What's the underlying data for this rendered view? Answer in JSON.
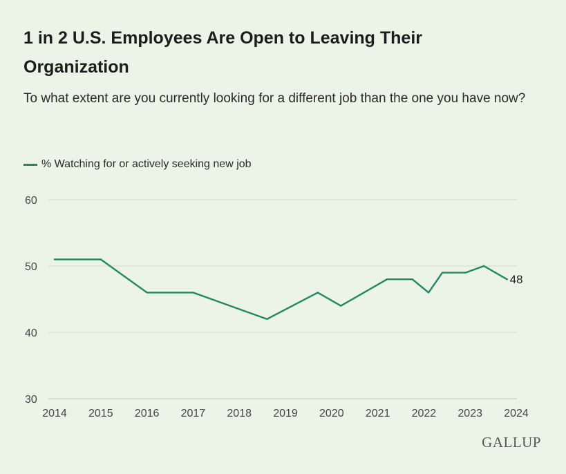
{
  "title": "1 in 2 U.S. Employees Are Open to Leaving Their Organization",
  "subtitle": "To what extent are you currently looking for a different job than the one you have now?",
  "logo": "GALLUP",
  "colors": {
    "series": "#1f8a5b",
    "grid": "#d2d8cd",
    "axis_text": "#444444"
  },
  "chart_data": {
    "type": "line",
    "title": "1 in 2 U.S. Employees Are Open to Leaving Their Organization",
    "subtitle": "To what extent are you currently looking for a different job than the one you have now?",
    "xlabel": "",
    "ylabel": "",
    "ylim": [
      30,
      60
    ],
    "yticks": [
      30,
      40,
      50,
      60
    ],
    "xlim": [
      2014,
      2024
    ],
    "xticks": [
      "2014",
      "2015",
      "2016",
      "2017",
      "2018",
      "2019",
      "2020",
      "2021",
      "2022",
      "2023",
      "2024"
    ],
    "grid": true,
    "legend_position": "top-left",
    "series": [
      {
        "name": "% Watching for or actively seeking new job",
        "x": [
          2014.0,
          2015.0,
          2016.0,
          2017.0,
          2018.6,
          2019.7,
          2020.2,
          2021.2,
          2021.75,
          2022.1,
          2022.4,
          2022.9,
          2023.3,
          2023.8
        ],
        "y": [
          51,
          51,
          46,
          46,
          42,
          46,
          44,
          48,
          48,
          46,
          49,
          49,
          50,
          48
        ],
        "end_label": "48"
      }
    ]
  }
}
